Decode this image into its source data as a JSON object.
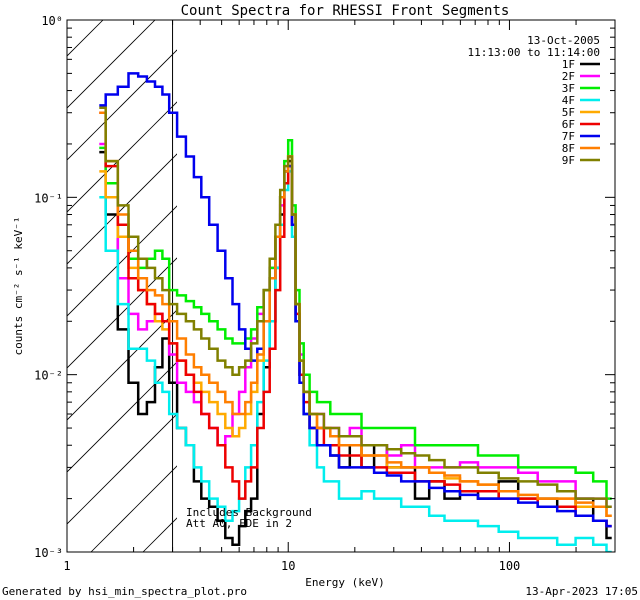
{
  "chart_data": {
    "type": "line",
    "title": "Count Spectra for RHESSI Front Segments",
    "xlabel": "Energy (keV)",
    "ylabel": "counts cm⁻² s⁻¹ keV⁻¹",
    "xscale": "log",
    "yscale": "log",
    "xlim": [
      1,
      300
    ],
    "ylim": [
      0.001,
      1
    ],
    "x_ticks": [
      {
        "value": 1,
        "label": "1"
      },
      {
        "value": 10,
        "label": "10"
      },
      {
        "value": 100,
        "label": "100"
      }
    ],
    "y_ticks": [
      {
        "value": 1,
        "label": "10⁰"
      },
      {
        "value": 0.1,
        "label": "10⁻¹"
      },
      {
        "value": 0.01,
        "label": "10⁻²"
      },
      {
        "value": 0.001,
        "label": "10⁻³"
      }
    ],
    "date": "13-Oct-2005",
    "time_range": "11:13:00 to 11:14:00",
    "hatched_region_max_keV": 3,
    "annotations": [
      "Includes Background",
      "Att A0, FDE in 2"
    ],
    "energy": [
      1.4,
      1.6,
      1.8,
      2.0,
      2.2,
      2.4,
      2.6,
      2.8,
      3.0,
      3.3,
      3.6,
      3.9,
      4.2,
      4.6,
      5.0,
      5.4,
      5.8,
      6.2,
      6.6,
      7.0,
      7.5,
      8.0,
      8.5,
      9.0,
      9.4,
      9.8,
      10.2,
      10.6,
      11.0,
      11.5,
      12.0,
      13.0,
      14.0,
      15.0,
      16.0,
      18.0,
      20.0,
      23.0,
      26.0,
      30.0,
      35.0,
      40.0,
      47.0,
      55.0,
      65.0,
      80.0,
      100.0,
      120.0,
      150.0,
      180.0,
      220.0,
      260.0,
      290.0
    ],
    "series": [
      {
        "name": "1F",
        "color": "#000000",
        "values": [
          0.18,
          0.08,
          0.018,
          0.009,
          0.006,
          0.007,
          0.011,
          0.016,
          0.009,
          0.005,
          0.004,
          0.0025,
          0.002,
          0.0018,
          0.0015,
          0.0012,
          0.0011,
          0.0014,
          0.0017,
          0.002,
          0.006,
          0.011,
          0.02,
          0.04,
          0.08,
          0.14,
          0.16,
          0.08,
          0.02,
          0.01,
          0.006,
          0.005,
          0.004,
          0.004,
          0.0035,
          0.003,
          0.004,
          0.003,
          0.004,
          0.003,
          0.003,
          0.002,
          0.0025,
          0.002,
          0.0022,
          0.002,
          0.0025,
          0.002,
          0.002,
          0.0018,
          0.002,
          0.0015,
          0.0012
        ]
      },
      {
        "name": "2F",
        "color": "#ff00ff",
        "values": [
          0.2,
          0.1,
          0.035,
          0.022,
          0.018,
          0.02,
          0.022,
          0.02,
          0.013,
          0.009,
          0.008,
          0.007,
          0.006,
          0.005,
          0.004,
          0.0045,
          0.006,
          0.008,
          0.011,
          0.016,
          0.022,
          0.03,
          0.04,
          0.06,
          0.09,
          0.12,
          0.15,
          0.07,
          0.025,
          0.013,
          0.008,
          0.006,
          0.006,
          0.005,
          0.005,
          0.0045,
          0.005,
          0.004,
          0.004,
          0.0035,
          0.004,
          0.003,
          0.003,
          0.003,
          0.0032,
          0.003,
          0.003,
          0.0028,
          0.0025,
          0.0025,
          0.002,
          0.002,
          0.0018
        ]
      },
      {
        "name": "3F",
        "color": "#00ee00",
        "values": [
          0.19,
          0.12,
          0.06,
          0.045,
          0.04,
          0.045,
          0.05,
          0.045,
          0.03,
          0.028,
          0.026,
          0.024,
          0.022,
          0.02,
          0.018,
          0.016,
          0.015,
          0.015,
          0.016,
          0.018,
          0.024,
          0.03,
          0.04,
          0.06,
          0.1,
          0.16,
          0.21,
          0.09,
          0.03,
          0.015,
          0.01,
          0.008,
          0.007,
          0.007,
          0.006,
          0.006,
          0.006,
          0.005,
          0.005,
          0.005,
          0.005,
          0.004,
          0.004,
          0.004,
          0.004,
          0.0035,
          0.0035,
          0.003,
          0.003,
          0.003,
          0.0028,
          0.0025,
          0.002
        ]
      },
      {
        "name": "4F",
        "color": "#00eeee",
        "values": [
          0.1,
          0.05,
          0.025,
          0.014,
          0.014,
          0.012,
          0.009,
          0.008,
          0.006,
          0.005,
          0.004,
          0.003,
          0.0025,
          0.002,
          0.0018,
          0.0015,
          0.0017,
          0.002,
          0.003,
          0.004,
          0.007,
          0.012,
          0.02,
          0.04,
          0.07,
          0.11,
          0.14,
          0.06,
          0.02,
          0.01,
          0.006,
          0.004,
          0.003,
          0.0025,
          0.0025,
          0.002,
          0.002,
          0.0022,
          0.002,
          0.002,
          0.0018,
          0.0018,
          0.0016,
          0.0015,
          0.0015,
          0.0014,
          0.0013,
          0.0012,
          0.0012,
          0.0011,
          0.0012,
          0.0011,
          0.001
        ]
      },
      {
        "name": "5F",
        "color": "#ffaa00",
        "values": [
          0.14,
          0.1,
          0.06,
          0.04,
          0.03,
          0.025,
          0.02,
          0.018,
          0.015,
          0.012,
          0.01,
          0.009,
          0.008,
          0.007,
          0.006,
          0.005,
          0.0045,
          0.005,
          0.006,
          0.008,
          0.012,
          0.02,
          0.035,
          0.06,
          0.1,
          0.14,
          0.17,
          0.08,
          0.025,
          0.012,
          0.008,
          0.006,
          0.005,
          0.005,
          0.0045,
          0.004,
          0.004,
          0.0035,
          0.0035,
          0.003,
          0.003,
          0.003,
          0.0028,
          0.0026,
          0.0025,
          0.0024,
          0.0022,
          0.002,
          0.002,
          0.002,
          0.0018,
          0.0018,
          0.0016
        ]
      },
      {
        "name": "6F",
        "color": "#ee0000",
        "values": [
          0.3,
          0.15,
          0.07,
          0.035,
          0.03,
          0.025,
          0.022,
          0.02,
          0.015,
          0.012,
          0.01,
          0.008,
          0.006,
          0.005,
          0.004,
          0.003,
          0.0025,
          0.002,
          0.0025,
          0.003,
          0.005,
          0.008,
          0.014,
          0.03,
          0.06,
          0.12,
          0.15,
          0.07,
          0.022,
          0.01,
          0.007,
          0.005,
          0.005,
          0.004,
          0.004,
          0.0035,
          0.0035,
          0.003,
          0.003,
          0.0028,
          0.0028,
          0.0025,
          0.0025,
          0.0024,
          0.0022,
          0.0022,
          0.002,
          0.002,
          0.0018,
          0.0018,
          0.0016,
          0.0015,
          0.0014
        ]
      },
      {
        "name": "7F",
        "color": "#0000ee",
        "values": [
          0.33,
          0.38,
          0.42,
          0.5,
          0.48,
          0.45,
          0.42,
          0.38,
          0.3,
          0.22,
          0.17,
          0.13,
          0.1,
          0.07,
          0.05,
          0.035,
          0.025,
          0.018,
          0.014,
          0.012,
          0.014,
          0.02,
          0.035,
          0.06,
          0.1,
          0.14,
          0.15,
          0.07,
          0.02,
          0.009,
          0.006,
          0.005,
          0.004,
          0.004,
          0.0035,
          0.003,
          0.003,
          0.003,
          0.0028,
          0.0027,
          0.0025,
          0.0025,
          0.0023,
          0.0022,
          0.0021,
          0.002,
          0.002,
          0.0019,
          0.0018,
          0.0017,
          0.0016,
          0.0015,
          0.0014
        ]
      },
      {
        "name": "8F",
        "color": "#ff7f00",
        "values": [
          0.3,
          0.16,
          0.08,
          0.05,
          0.035,
          0.03,
          0.028,
          0.025,
          0.02,
          0.016,
          0.013,
          0.011,
          0.01,
          0.009,
          0.008,
          0.007,
          0.006,
          0.006,
          0.007,
          0.009,
          0.013,
          0.02,
          0.035,
          0.06,
          0.1,
          0.14,
          0.17,
          0.08,
          0.025,
          0.012,
          0.008,
          0.006,
          0.005,
          0.005,
          0.0045,
          0.004,
          0.004,
          0.0035,
          0.0035,
          0.0032,
          0.003,
          0.003,
          0.0028,
          0.0027,
          0.0025,
          0.0024,
          0.0022,
          0.0021,
          0.002,
          0.002,
          0.0019,
          0.0018,
          0.0016
        ]
      },
      {
        "name": "9F",
        "color": "#808000",
        "values": [
          0.32,
          0.16,
          0.09,
          0.06,
          0.045,
          0.04,
          0.035,
          0.03,
          0.025,
          0.022,
          0.02,
          0.018,
          0.016,
          0.014,
          0.012,
          0.011,
          0.01,
          0.011,
          0.012,
          0.015,
          0.02,
          0.03,
          0.045,
          0.07,
          0.11,
          0.15,
          0.17,
          0.08,
          0.025,
          0.012,
          0.008,
          0.006,
          0.006,
          0.005,
          0.005,
          0.0045,
          0.0045,
          0.004,
          0.004,
          0.0038,
          0.0036,
          0.0035,
          0.0033,
          0.003,
          0.003,
          0.0028,
          0.0026,
          0.0025,
          0.0024,
          0.0022,
          0.002,
          0.002,
          0.0018
        ]
      }
    ]
  },
  "footer": {
    "generator": "Generated by hsi_min_spectra_plot.pro",
    "timestamp": "13-Apr-2023 17:05"
  }
}
